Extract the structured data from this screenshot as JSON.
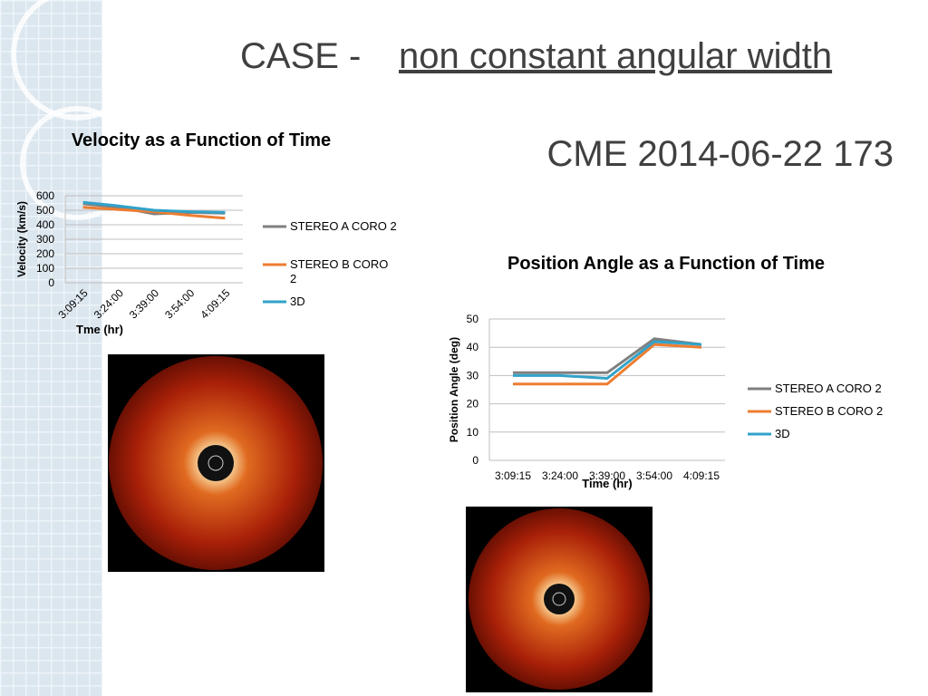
{
  "slide": {
    "title_prefix": "CASE -",
    "title_underlined": "non constant angular width",
    "subtitle": "CME 2014-06-22 173"
  },
  "chart_data": [
    {
      "type": "line",
      "title": "Velocity as a Function of Time",
      "y_label": "Velocity (km/s)",
      "x_label": "Tme (hr)",
      "categories": [
        "3:09:15",
        "3:24:00",
        "3:39:00",
        "3:54:00",
        "4:09:15"
      ],
      "ylim": [
        0,
        600
      ],
      "yticks": [
        0,
        100,
        200,
        300,
        400,
        500,
        600
      ],
      "grid": true,
      "legend": "right",
      "series": [
        {
          "name": "STEREO A CORO 2",
          "color": "#7f7f7f",
          "values": [
            545,
            520,
            475,
            485,
            480
          ]
        },
        {
          "name": "STEREO B CORO 2",
          "color": "#ed7d31",
          "values": [
            520,
            505,
            490,
            465,
            445
          ]
        },
        {
          "name": "3D",
          "color": "#31a2c9",
          "values": [
            555,
            530,
            500,
            490,
            485
          ]
        }
      ]
    },
    {
      "type": "line",
      "title": "Position Angle as a Function of Time",
      "y_label": "Position Angle (deg)",
      "x_label": "Time (hr)",
      "categories": [
        "3:09:15",
        "3:24:00",
        "3:39:00",
        "3:54:00",
        "4:09:15"
      ],
      "ylim": [
        0,
        50
      ],
      "yticks": [
        0,
        10,
        20,
        30,
        40,
        50
      ],
      "grid": true,
      "legend": "right",
      "series": [
        {
          "name": "STEREO A CORO 2",
          "color": "#7f7f7f",
          "values": [
            31,
            31,
            31,
            43,
            41
          ]
        },
        {
          "name": "STEREO B CORO 2",
          "color": "#ed7d31",
          "values": [
            27,
            27,
            27,
            41,
            40
          ]
        },
        {
          "name": "3D",
          "color": "#31a2c9",
          "values": [
            30,
            30,
            29,
            42,
            41
          ]
        }
      ]
    }
  ]
}
